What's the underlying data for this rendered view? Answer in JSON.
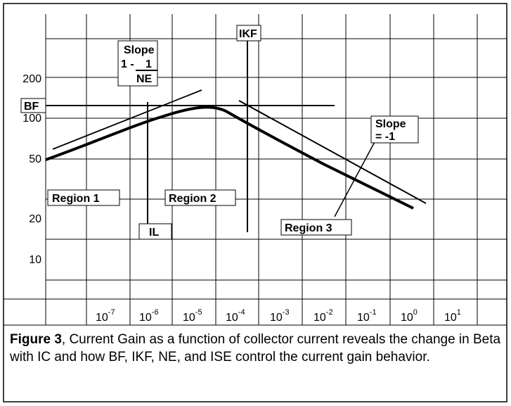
{
  "y_labels": [
    "200",
    "100",
    "50",
    "20",
    "10"
  ],
  "x_labels": [
    {
      "base": "10",
      "exp": "-7"
    },
    {
      "base": "10",
      "exp": "-6"
    },
    {
      "base": "10",
      "exp": "-5"
    },
    {
      "base": "10",
      "exp": "-4"
    },
    {
      "base": "10",
      "exp": "-3"
    },
    {
      "base": "10",
      "exp": "-2"
    },
    {
      "base": "10",
      "exp": "-1"
    },
    {
      "base": "10",
      "exp": "0"
    },
    {
      "base": "10",
      "exp": "1"
    }
  ],
  "annotations": {
    "slope_ne": {
      "line1": "Slope",
      "line2": "1 - ",
      "numerator": "1",
      "denominator": "NE"
    },
    "ikf": "IKF",
    "bf": "BF",
    "il": "IL",
    "region1": "Region 1",
    "region2": "Region 2",
    "region3": "Region 3",
    "slope_minus1": {
      "line1": "Slope",
      "line2": "= -1"
    }
  },
  "caption": {
    "label": "Figure 3",
    "text": ", Current Gain as a function of collector current reveals the change in Beta with IC and how BF, IKF, NE, and ISE control the current gain behavior."
  }
}
